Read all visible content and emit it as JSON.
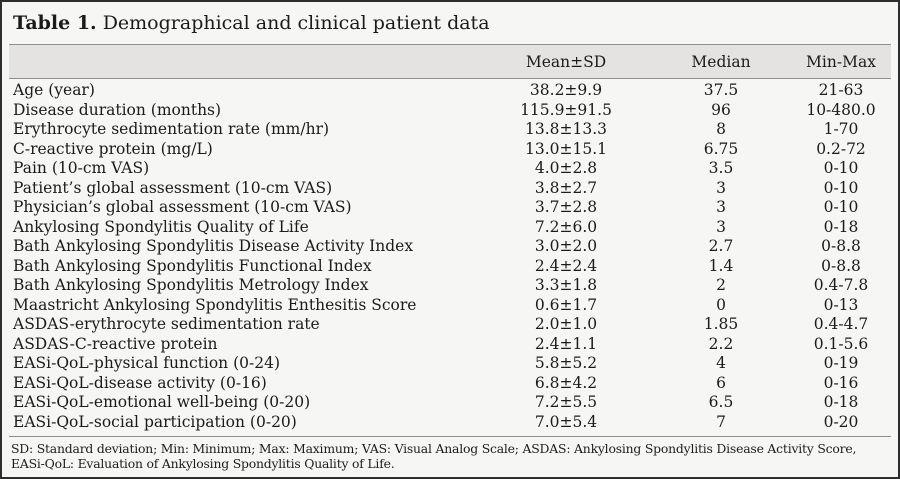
{
  "title": {
    "label": "Table 1.",
    "caption": "Demographical and clinical patient data"
  },
  "columns": [
    "Mean±SD",
    "Median",
    "Min-Max"
  ],
  "rows": [
    {
      "label": "Age (year)",
      "mean_sd": "38.2±9.9",
      "median": "37.5",
      "min_max": "21-63"
    },
    {
      "label": "Disease duration (months)",
      "mean_sd": "115.9±91.5",
      "median": "96",
      "min_max": "10-480.0"
    },
    {
      "label": "Erythrocyte sedimentation rate (mm/hr)",
      "mean_sd": "13.8±13.3",
      "median": "8",
      "min_max": "1-70"
    },
    {
      "label": "C-reactive protein (mg/L)",
      "mean_sd": "13.0±15.1",
      "median": "6.75",
      "min_max": "0.2-72"
    },
    {
      "label": "Pain (10-cm VAS)",
      "mean_sd": "4.0±2.8",
      "median": "3.5",
      "min_max": "0-10"
    },
    {
      "label": "Patient’s global assessment (10-cm VAS)",
      "mean_sd": "3.8±2.7",
      "median": "3",
      "min_max": "0-10"
    },
    {
      "label": "Physician’s global assessment (10-cm VAS)",
      "mean_sd": "3.7±2.8",
      "median": "3",
      "min_max": "0-10"
    },
    {
      "label": "Ankylosing Spondylitis Quality of Life",
      "mean_sd": "7.2±6.0",
      "median": "3",
      "min_max": "0-18"
    },
    {
      "label": "Bath Ankylosing Spondylitis Disease Activity Index",
      "mean_sd": "3.0±2.0",
      "median": "2.7",
      "min_max": "0-8.8"
    },
    {
      "label": "Bath Ankylosing Spondylitis Functional Index",
      "mean_sd": "2.4±2.4",
      "median": "1.4",
      "min_max": "0-8.8"
    },
    {
      "label": "Bath Ankylosing Spondylitis Metrology Index",
      "mean_sd": "3.3±1.8",
      "median": "2",
      "min_max": "0.4-7.8"
    },
    {
      "label": "Maastricht Ankylosing Spondylitis Enthesitis Score",
      "mean_sd": "0.6±1.7",
      "median": "0",
      "min_max": "0-13"
    },
    {
      "label": "ASDAS-erythrocyte sedimentation rate",
      "mean_sd": "2.0±1.0",
      "median": "1.85",
      "min_max": "0.4-4.7"
    },
    {
      "label": "ASDAS-C-reactive protein",
      "mean_sd": "2.4±1.1",
      "median": "2.2",
      "min_max": "0.1-5.6"
    },
    {
      "label": "EASi-QoL-physical function (0-24)",
      "mean_sd": "5.8±5.2",
      "median": "4",
      "min_max": "0-19"
    },
    {
      "label": "EASi-QoL-disease activity (0-16)",
      "mean_sd": "6.8±4.2",
      "median": "6",
      "min_max": "0-16"
    },
    {
      "label": "EASi-QoL-emotional well-being (0-20)",
      "mean_sd": "7.2±5.5",
      "median": "6.5",
      "min_max": "0-18"
    },
    {
      "label": "EASi-QoL-social participation (0-20)",
      "mean_sd": "7.0±5.4",
      "median": "7",
      "min_max": "0-20"
    }
  ],
  "footnote": {
    "lines": [
      "SD: Standard deviation; Min: Minimum; Max: Maximum; VAS: Visual Analog Scale; ASDAS: Ankylosing Spondylitis Disease Activity Score,",
      "EASi-QoL: Evaluation of Ankylosing Spondylitis Quality of Life."
    ]
  },
  "colors": {
    "page_bg": "#f6f6f4",
    "band_bg": "#e4e3e1",
    "rule": "#8f8f8f",
    "border": "#2e2e2e",
    "text": "#1b1b1b"
  }
}
